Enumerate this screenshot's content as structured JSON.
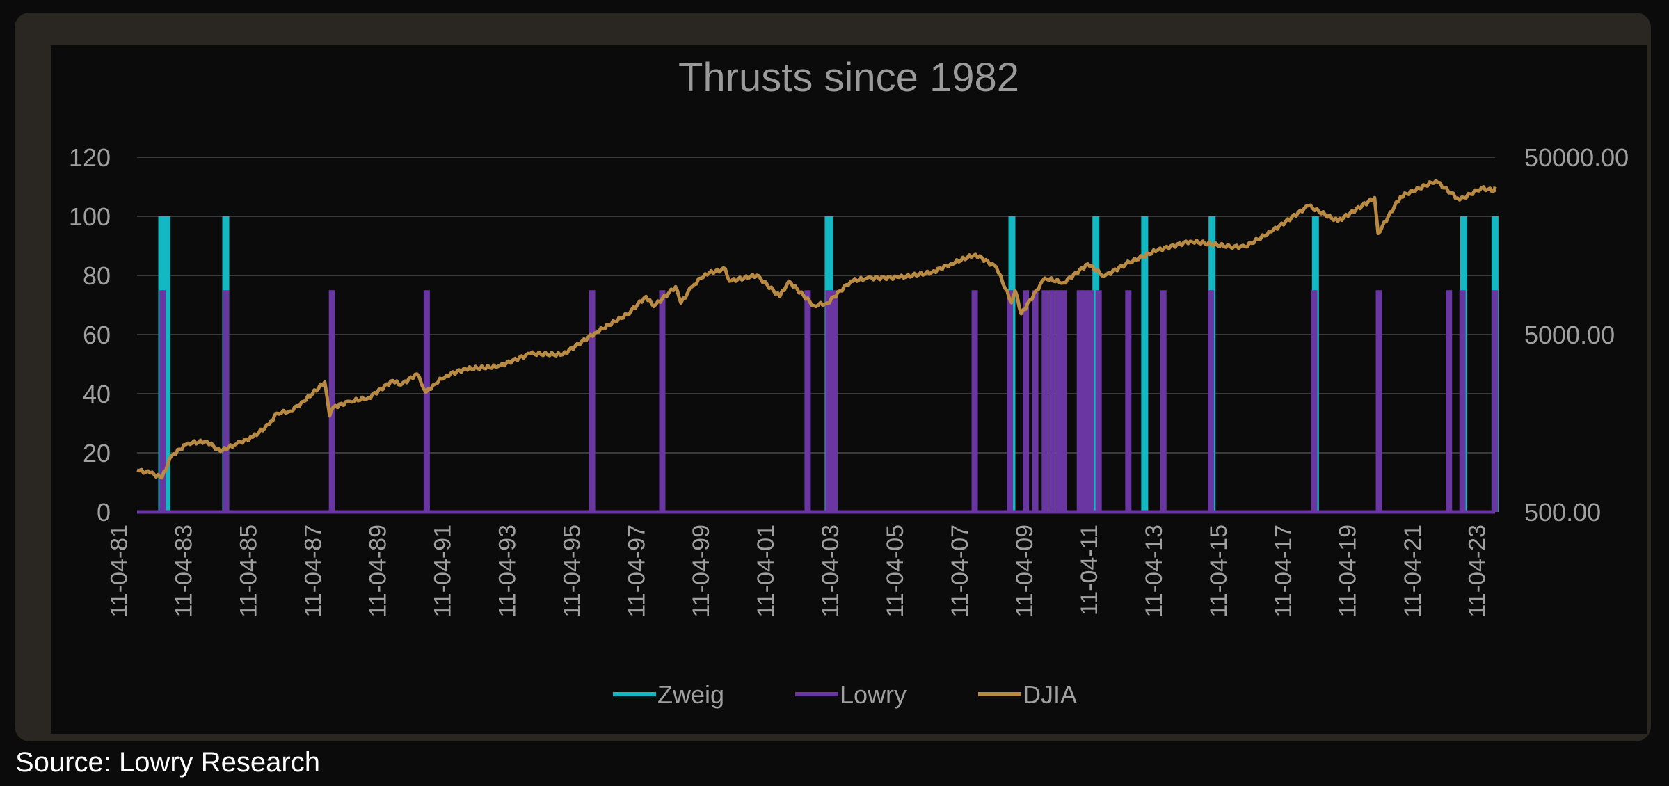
{
  "source": "Source: Lowry Research",
  "colors": {
    "zweig": "#13b8c2",
    "lowry": "#6a36a2",
    "djia": "#b88a43",
    "text": "#a0a0a0",
    "title": "#9a9a9a",
    "grid": "#3a3a3a"
  },
  "chart_data": {
    "type": "bar+line",
    "title": "Thrusts since 1982",
    "y_left": {
      "ticks": [
        0,
        20,
        40,
        60,
        80,
        100,
        120
      ],
      "range": [
        0,
        120
      ]
    },
    "y_right": {
      "scale": "log",
      "ticks": [
        "500.00",
        "5000.00",
        "50000.00"
      ],
      "range": [
        500,
        50000
      ]
    },
    "x_range": [
      "1981-11-04",
      "2023-11-04"
    ],
    "x_ticks": [
      "11-04-81",
      "11-04-83",
      "11-04-85",
      "11-04-87",
      "11-04-89",
      "11-04-91",
      "11-04-93",
      "11-04-95",
      "11-04-97",
      "11-04-99",
      "11-04-01",
      "11-04-03",
      "11-04-05",
      "11-04-07",
      "11-04-09",
      "11-04-11",
      "11-04-13",
      "11-04-15",
      "11-04-17",
      "11-04-19",
      "11-04-21",
      "11-04-23"
    ],
    "legend": {
      "position": "bottom"
    },
    "series": [
      {
        "name": "Zweig",
        "kind": "bar",
        "value": 100,
        "dates": [
          "1982-08-10",
          "1982-10-07",
          "1984-08-02",
          "2003-03-21",
          "2003-04-09",
          "2008-11-24",
          "2011-07-01",
          "2013-01-02",
          "2015-02-02",
          "2018-04-15",
          "2022-11-15",
          "2023-11-03"
        ]
      },
      {
        "name": "Lowry",
        "kind": "bar",
        "value": 75,
        "dates": [
          "1982-08-20",
          "1984-08-05",
          "1987-11-15",
          "1990-10-20",
          "1995-12-01",
          "1998-02-01",
          "2002-08-01",
          "2003-03-25",
          "2003-06-01",
          "2007-10-01",
          "2008-11-01",
          "2009-05-01",
          "2009-08-15",
          "2009-12-01",
          "2010-02-15",
          "2010-05-01",
          "2010-07-01",
          "2011-01-01",
          "2011-03-01",
          "2011-05-01",
          "2011-08-01",
          "2012-07-01",
          "2013-08-01",
          "2015-01-20",
          "2018-04-01",
          "2020-04-01",
          "2022-06-01",
          "2022-11-01",
          "2023-11-01"
        ]
      },
      {
        "name": "DJIA",
        "kind": "line",
        "axis": "right",
        "points": [
          [
            "1981-11-04",
            860
          ],
          [
            "1982-04-01",
            830
          ],
          [
            "1982-08-12",
            780
          ],
          [
            "1982-12-01",
            1040
          ],
          [
            "1983-06-01",
            1220
          ],
          [
            "1984-01-01",
            1250
          ],
          [
            "1984-06-01",
            1100
          ],
          [
            "1984-12-01",
            1210
          ],
          [
            "1985-06-01",
            1320
          ],
          [
            "1985-12-01",
            1550
          ],
          [
            "1986-03-01",
            1800
          ],
          [
            "1986-08-01",
            1850
          ],
          [
            "1987-01-01",
            2100
          ],
          [
            "1987-08-25",
            2700
          ],
          [
            "1987-10-19",
            1738
          ],
          [
            "1987-12-01",
            1950
          ],
          [
            "1988-06-01",
            2100
          ],
          [
            "1989-01-01",
            2200
          ],
          [
            "1989-10-01",
            2750
          ],
          [
            "1990-01-01",
            2600
          ],
          [
            "1990-07-01",
            3000
          ],
          [
            "1990-10-11",
            2365
          ],
          [
            "1991-01-01",
            2600
          ],
          [
            "1991-06-01",
            2950
          ],
          [
            "1992-01-01",
            3200
          ],
          [
            "1993-01-01",
            3300
          ],
          [
            "1994-01-01",
            3900
          ],
          [
            "1995-01-01",
            3850
          ],
          [
            "1996-01-01",
            5100
          ],
          [
            "1997-01-01",
            6500
          ],
          [
            "1997-08-01",
            8200
          ],
          [
            "1997-10-27",
            7200
          ],
          [
            "1998-07-01",
            9300
          ],
          [
            "1998-08-31",
            7540
          ],
          [
            "1999-01-01",
            9300
          ],
          [
            "1999-06-01",
            11000
          ],
          [
            "2000-01-14",
            11722
          ],
          [
            "2000-03-01",
            10000
          ],
          [
            "2001-01-01",
            10800
          ],
          [
            "2001-09-21",
            8200
          ],
          [
            "2002-01-01",
            10000
          ],
          [
            "2002-10-09",
            7286
          ],
          [
            "2003-03-11",
            7524
          ],
          [
            "2003-12-01",
            10000
          ],
          [
            "2004-06-01",
            10400
          ],
          [
            "2005-06-01",
            10500
          ],
          [
            "2006-06-01",
            11200
          ],
          [
            "2007-01-01",
            12500
          ],
          [
            "2007-10-09",
            14164
          ],
          [
            "2008-06-01",
            12000
          ],
          [
            "2008-11-20",
            7552
          ],
          [
            "2009-01-01",
            8800
          ],
          [
            "2009-03-09",
            6547
          ],
          [
            "2009-12-01",
            10400
          ],
          [
            "2010-07-01",
            9800
          ],
          [
            "2011-04-01",
            12500
          ],
          [
            "2011-10-03",
            10655
          ],
          [
            "2012-06-01",
            12500
          ],
          [
            "2013-06-01",
            15000
          ],
          [
            "2014-06-01",
            16800
          ],
          [
            "2015-08-25",
            15666
          ],
          [
            "2016-02-11",
            15660
          ],
          [
            "2016-12-01",
            19000
          ],
          [
            "2018-01-26",
            26616
          ],
          [
            "2018-12-24",
            21792
          ],
          [
            "2020-02-12",
            29551
          ],
          [
            "2020-03-23",
            18591
          ],
          [
            "2020-12-01",
            30000
          ],
          [
            "2022-01-04",
            36799
          ],
          [
            "2022-09-30",
            28725
          ],
          [
            "2023-06-01",
            33500
          ],
          [
            "2023-10-27",
            32418
          ],
          [
            "2023-11-04",
            34061
          ]
        ]
      }
    ]
  }
}
